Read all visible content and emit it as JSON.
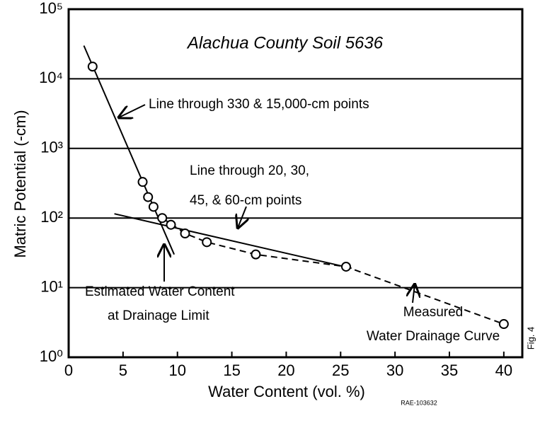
{
  "chart_data": {
    "type": "scatter",
    "xlabel": "Water Content (vol. %)",
    "ylabel": "Matric Potential (-cm)",
    "xlim": [
      0,
      41.7
    ],
    "xticks": [
      0,
      5,
      10,
      15,
      20,
      25,
      30,
      35,
      40
    ],
    "ylim": [
      1,
      100000
    ],
    "yticks": [
      {
        "value": 1,
        "label": "10⁰"
      },
      {
        "value": 10,
        "label": "10¹"
      },
      {
        "value": 100,
        "label": "10²"
      },
      {
        "value": 1000,
        "label": "10³"
      },
      {
        "value": 10000,
        "label": "10⁴"
      },
      {
        "value": 100000,
        "label": "10⁵"
      }
    ],
    "log_y": true,
    "grid": "y",
    "color": "#000000",
    "series": [
      {
        "type": "scatter",
        "x": [
          2.2,
          6.8,
          7.3,
          7.8,
          8.6,
          9.4,
          10.7,
          12.7,
          17.2,
          25.5,
          40
        ],
        "values": [
          15000,
          330,
          200,
          145,
          100,
          80,
          60,
          45,
          30,
          20,
          3
        ]
      },
      {
        "type": "line",
        "dashed": true,
        "x": [
          8.6,
          10.7,
          12.7,
          17.2,
          25.5,
          40
        ],
        "values": [
          100,
          60,
          45,
          30,
          20,
          3
        ]
      },
      {
        "type": "line",
        "dashed": false,
        "x": [
          1.4,
          9.7
        ],
        "values": [
          30000,
          30
        ]
      },
      {
        "type": "line",
        "dashed": false,
        "x": [
          4.2,
          26
        ],
        "values": [
          115,
          19
        ]
      }
    ],
    "annotations": [
      "Alachua County Soil 5636",
      "Line through 330 & 15,000-cm points",
      "Line through 20, 30,",
      "45, & 60-cm points",
      "Estimated Water Content",
      "at Drainage Limit",
      "Measured",
      "Water Drainage Curve",
      "Fig. 4",
      "RAE-103632"
    ]
  }
}
